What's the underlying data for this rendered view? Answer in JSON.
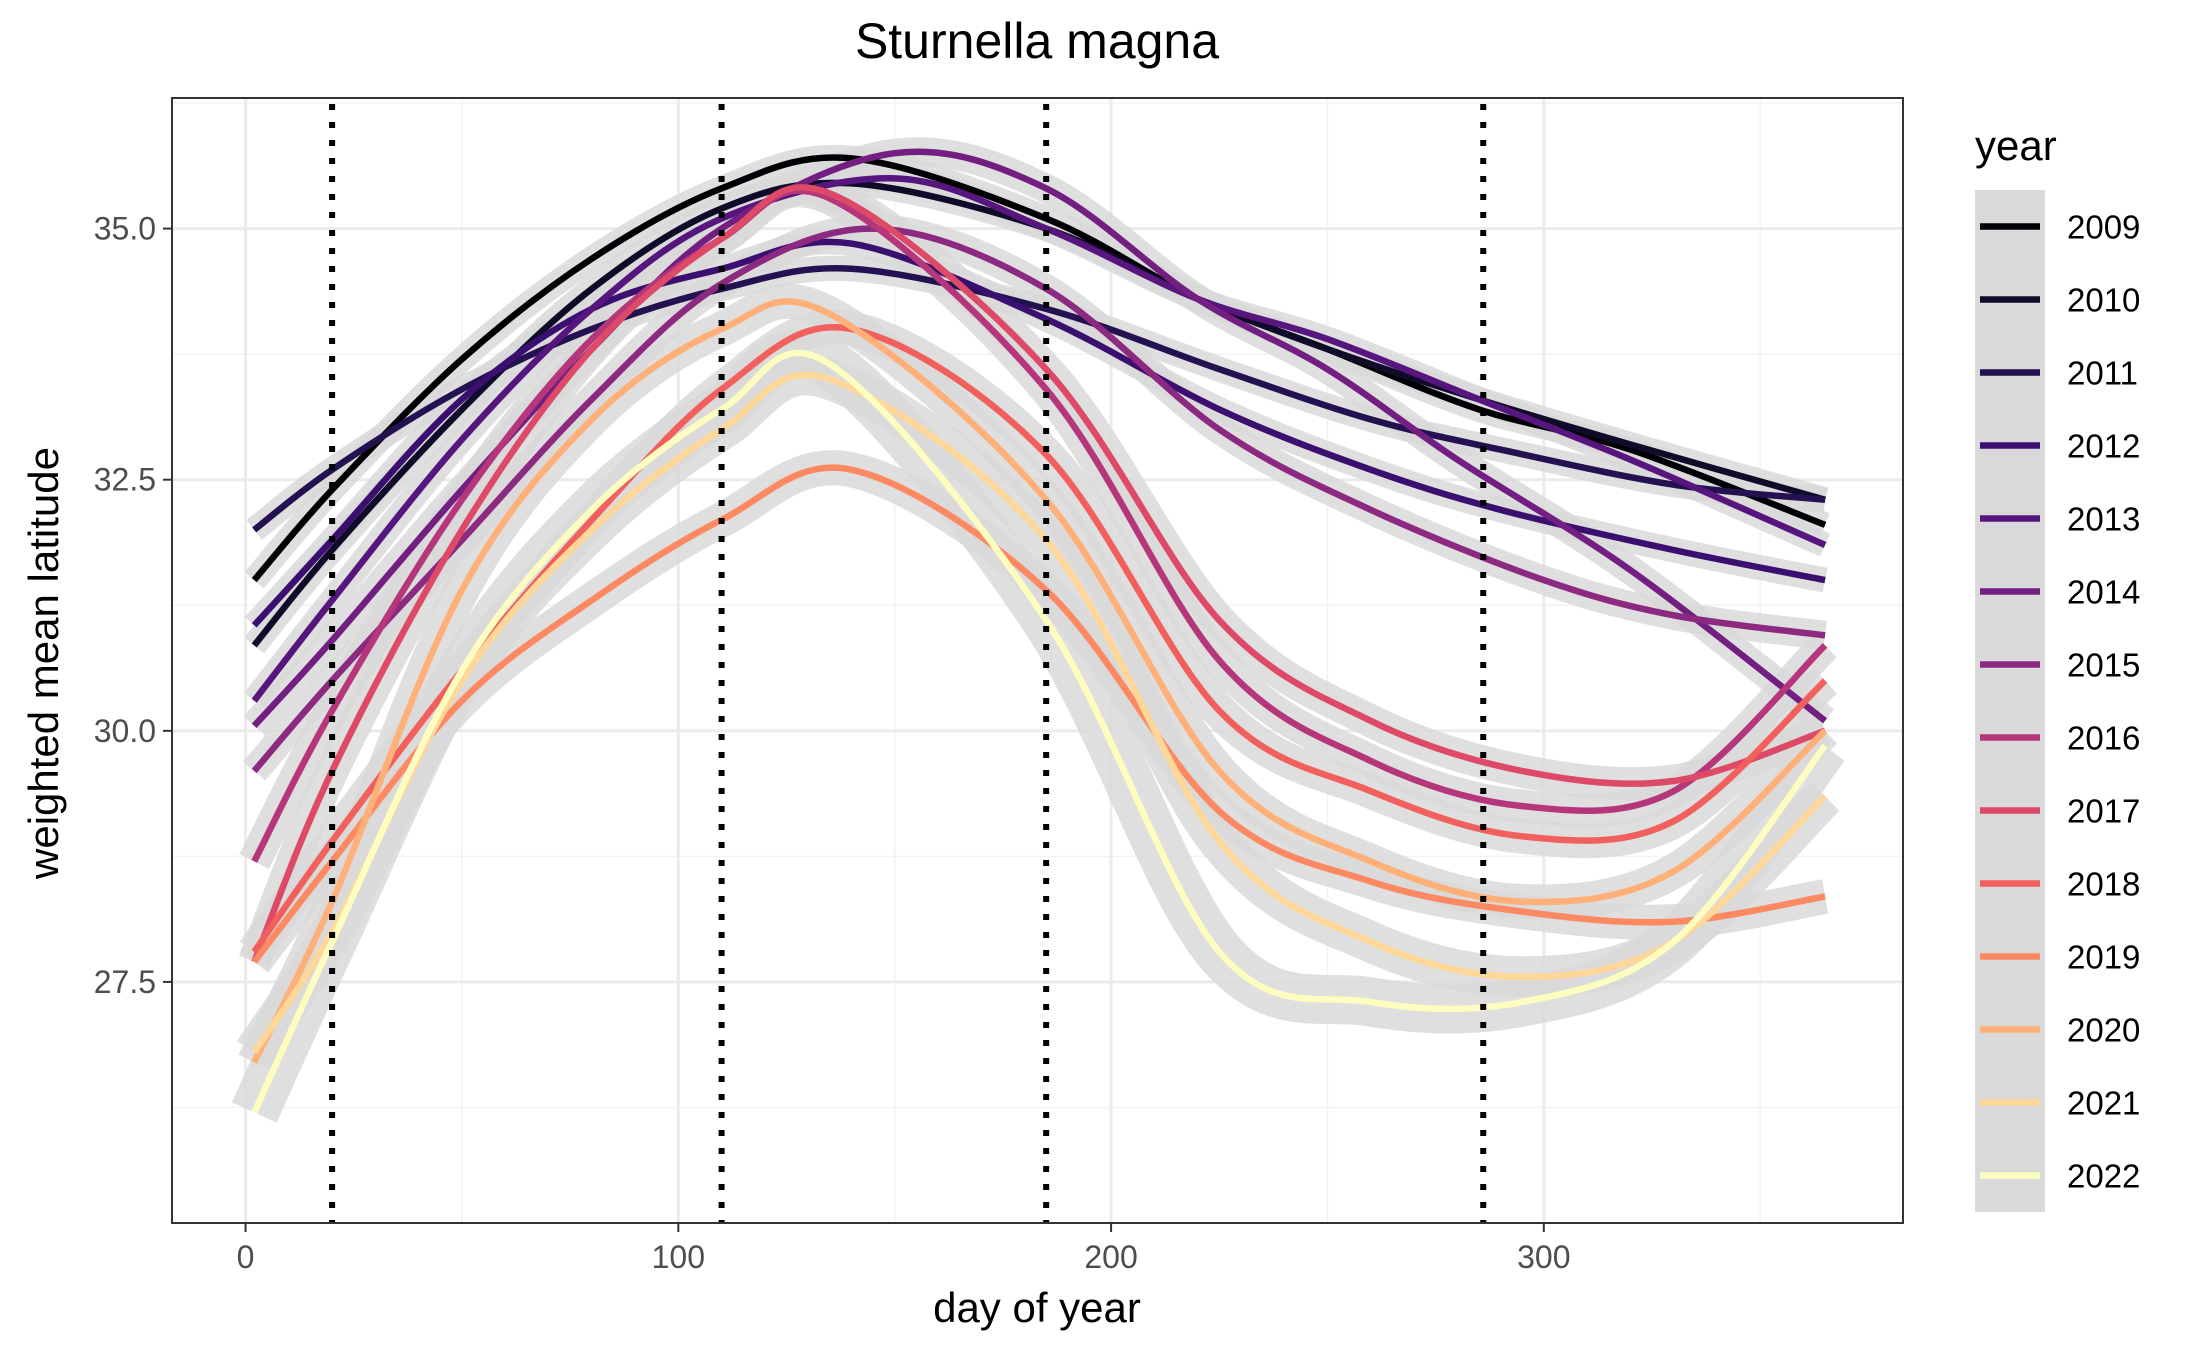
{
  "chart_data": {
    "type": "line",
    "title": "Sturnella magna",
    "xlabel": "day of year",
    "ylabel": "weighted mean latitude",
    "xlim": [
      -17,
      383
    ],
    "ylim": [
      25.1,
      36.3
    ],
    "xticks": [
      0,
      100,
      200,
      300
    ],
    "yticks": [
      27.5,
      30.0,
      32.5,
      35.0
    ],
    "ytick_labels": [
      "27.5",
      "30.0",
      "32.5",
      "35.0"
    ],
    "grid": true,
    "confidence_band_color": "#d9d9d9",
    "vertical_reference_lines": [
      20,
      110,
      185,
      286
    ],
    "legend": {
      "title": "year",
      "placement": "right"
    },
    "series": [
      {
        "name": "2009",
        "color": "#000004",
        "band": 0.1,
        "x": [
          2,
          20,
          50,
          80,
          110,
          140,
          185,
          220,
          250,
          285,
          320,
          365
        ],
        "y": [
          31.5,
          32.4,
          33.7,
          34.7,
          35.4,
          35.7,
          35.1,
          34.3,
          33.8,
          33.2,
          32.8,
          32.05
        ]
      },
      {
        "name": "2010",
        "color": "#0f0b29",
        "band": 0.1,
        "x": [
          2,
          20,
          50,
          80,
          110,
          140,
          185,
          220,
          250,
          285,
          320,
          365
        ],
        "y": [
          30.85,
          31.8,
          33.2,
          34.4,
          35.2,
          35.45,
          35.0,
          34.3,
          33.8,
          33.3,
          32.85,
          32.3
        ]
      },
      {
        "name": "2011",
        "color": "#231151",
        "band": 0.1,
        "x": [
          2,
          20,
          50,
          80,
          110,
          140,
          185,
          225,
          260,
          290,
          330,
          365
        ],
        "y": [
          32.0,
          32.6,
          33.4,
          34.0,
          34.4,
          34.6,
          34.2,
          33.6,
          33.1,
          32.8,
          32.45,
          32.3
        ]
      },
      {
        "name": "2012",
        "color": "#3b0f70",
        "band": 0.1,
        "x": [
          2,
          20,
          50,
          80,
          110,
          140,
          185,
          225,
          260,
          290,
          330,
          365
        ],
        "y": [
          31.05,
          31.9,
          33.3,
          34.2,
          34.6,
          34.85,
          34.1,
          33.2,
          32.6,
          32.2,
          31.8,
          31.5
        ]
      },
      {
        "name": "2013",
        "color": "#57157e",
        "band": 0.1,
        "x": [
          2,
          20,
          50,
          80,
          110,
          150,
          185,
          220,
          250,
          285,
          320,
          365
        ],
        "y": [
          30.3,
          31.3,
          32.9,
          34.2,
          35.1,
          35.5,
          35.0,
          34.3,
          33.9,
          33.3,
          32.7,
          31.85
        ]
      },
      {
        "name": "2014",
        "color": "#721f81",
        "band": 0.12,
        "x": [
          2,
          20,
          50,
          80,
          110,
          150,
          185,
          220,
          250,
          280,
          320,
          365
        ],
        "y": [
          30.05,
          30.9,
          32.4,
          33.8,
          35.0,
          35.75,
          35.4,
          34.3,
          33.6,
          32.7,
          31.6,
          30.1
        ]
      },
      {
        "name": "2015",
        "color": "#8c2981",
        "band": 0.12,
        "x": [
          2,
          20,
          50,
          80,
          110,
          145,
          185,
          225,
          260,
          300,
          330,
          365
        ],
        "y": [
          29.6,
          30.5,
          31.9,
          33.3,
          34.45,
          35.0,
          34.4,
          33.0,
          32.2,
          31.5,
          31.15,
          30.95
        ]
      },
      {
        "name": "2016",
        "color": "#b5367a",
        "band": 0.14,
        "x": [
          2,
          20,
          50,
          80,
          110,
          135,
          185,
          225,
          260,
          295,
          330,
          365
        ],
        "y": [
          28.7,
          30.2,
          32.3,
          33.9,
          34.9,
          35.3,
          33.4,
          30.7,
          29.7,
          29.25,
          29.4,
          30.85
        ]
      },
      {
        "name": "2017",
        "color": "#de4968",
        "band": 0.14,
        "x": [
          2,
          20,
          50,
          80,
          110,
          135,
          185,
          225,
          260,
          295,
          330,
          365
        ],
        "y": [
          27.7,
          29.6,
          32.0,
          33.8,
          34.9,
          35.35,
          33.6,
          31.1,
          30.1,
          29.6,
          29.5,
          30.0
        ]
      },
      {
        "name": "2018",
        "color": "#f1605d",
        "band": 0.15,
        "x": [
          2,
          20,
          50,
          80,
          110,
          140,
          185,
          225,
          260,
          295,
          330,
          365
        ],
        "y": [
          27.8,
          28.9,
          30.6,
          32.1,
          33.4,
          34.0,
          32.75,
          30.2,
          29.4,
          28.95,
          29.1,
          30.5
        ]
      },
      {
        "name": "2019",
        "color": "#fc8961",
        "band": 0.15,
        "x": [
          2,
          20,
          50,
          80,
          110,
          140,
          185,
          225,
          260,
          295,
          330,
          365
        ],
        "y": [
          27.7,
          28.7,
          30.3,
          31.3,
          32.1,
          32.6,
          31.4,
          29.2,
          28.5,
          28.2,
          28.1,
          28.35
        ]
      },
      {
        "name": "2020",
        "color": "#feb078",
        "band": 0.15,
        "x": [
          2,
          20,
          50,
          80,
          110,
          135,
          185,
          225,
          260,
          295,
          330,
          365
        ],
        "y": [
          26.7,
          28.3,
          31.4,
          33.1,
          34.0,
          34.15,
          32.3,
          29.6,
          28.7,
          28.3,
          28.6,
          30.0
        ]
      },
      {
        "name": "2021",
        "color": "#fed799",
        "band": 0.18,
        "x": [
          2,
          20,
          50,
          80,
          110,
          135,
          185,
          225,
          260,
          295,
          330,
          365
        ],
        "y": [
          26.8,
          28.0,
          30.5,
          32.0,
          33.0,
          33.5,
          31.9,
          28.9,
          27.9,
          27.55,
          27.9,
          29.35
        ]
      },
      {
        "name": "2022",
        "color": "#fcfdbf",
        "band": 0.22,
        "x": [
          2,
          20,
          50,
          80,
          110,
          135,
          185,
          225,
          260,
          295,
          330,
          365
        ],
        "y": [
          26.2,
          27.9,
          30.6,
          32.2,
          33.2,
          33.65,
          31.1,
          27.8,
          27.3,
          27.3,
          27.9,
          29.85
        ]
      }
    ]
  }
}
